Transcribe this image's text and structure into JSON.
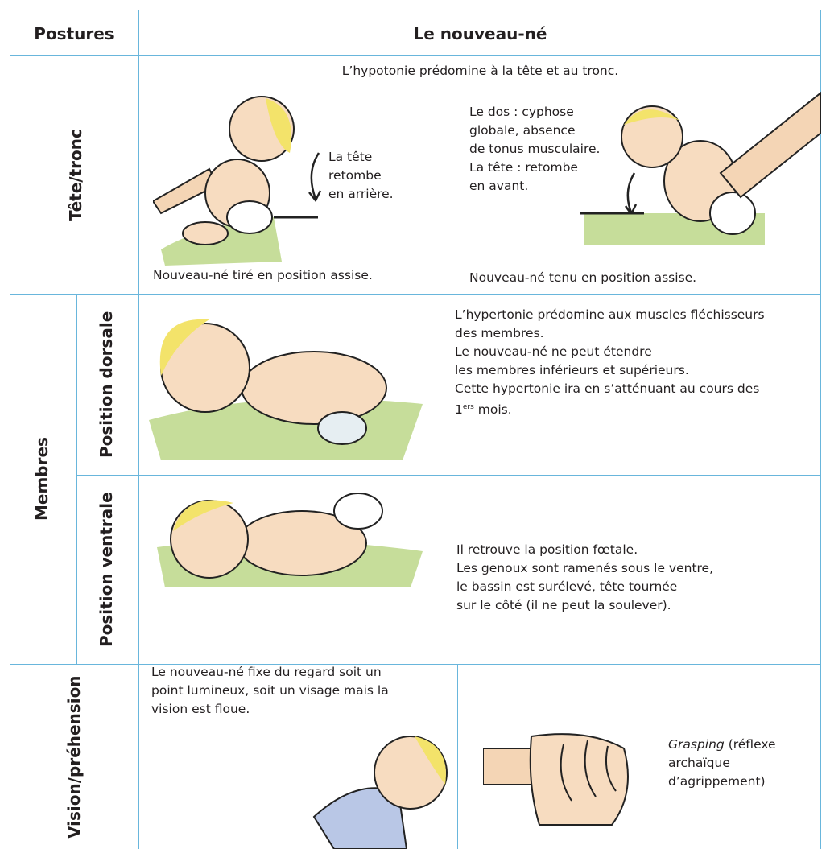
{
  "header": {
    "col1": "Postures",
    "col2": "Le nouveau-né"
  },
  "tete_tronc": {
    "label": "Tête/tronc",
    "intro": "L’hypotonie prédomine à la tête et au tronc.",
    "left_note": [
      "La tête",
      "retombe",
      "en arrière."
    ],
    "left_caption": "Nouveau-né tiré en position assise.",
    "right_note": [
      "Le dos : cyphose",
      "globale, absence",
      "de tonus musculaire.",
      "La tête : retombe",
      "en avant."
    ],
    "right_caption": "Nouveau-né tenu en position assise."
  },
  "membres": {
    "label": "Membres",
    "dorsal": {
      "label": "Position dorsale",
      "lines": [
        "L’hypertonie prédomine aux muscles fléchisseurs",
        "des membres.",
        "Le nouveau-né ne peut étendre",
        "les membres inférieurs et supérieurs.",
        "Cette hypertonie ira en s’atténuant au cours des"
      ],
      "last": {
        "before": "1",
        "sup": "ers",
        "after": " mois."
      }
    },
    "ventral": {
      "label": "Position ventrale",
      "lines": [
        "Il retrouve la position fœtale.",
        "Les genoux sont ramenés sous le ventre,",
        "le bassin est surélevé, tête tournée",
        "sur le côté (il ne peut la soulever)."
      ]
    }
  },
  "vision": {
    "label": "Vision/préhension",
    "lines": [
      "Le nouveau-né fixe du regard soit un",
      "point lumineux, soit un visage mais la",
      "vision est floue."
    ],
    "grasping": {
      "term": "Grasping",
      "rest": " (réflexe",
      "lines": [
        "archaïque",
        "d’agrippement)"
      ]
    }
  }
}
